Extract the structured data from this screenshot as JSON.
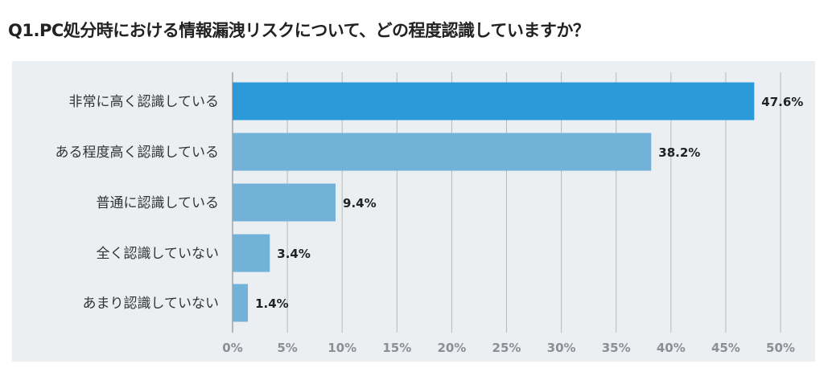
{
  "chart_data": {
    "type": "bar",
    "orientation": "horizontal",
    "title": "Q1.PC処分時における情報漏洩リスクについて、どの程度認識していますか？",
    "categories": [
      "非常に高く認識している",
      "ある程度高く認識している",
      "普通に認識している",
      "全く認識していない",
      "あまり認識していない"
    ],
    "values": [
      47.6,
      38.2,
      9.4,
      3.4,
      1.4
    ],
    "value_labels": [
      "47.6%",
      "38.2%",
      "9.4%",
      "3.4%",
      "1.4%"
    ],
    "bar_colors": [
      "#2c9ad8",
      "#72b2d8",
      "#72b2d8",
      "#72b2d8",
      "#72b2d8"
    ],
    "xlim": [
      0,
      50
    ],
    "xticks": [
      0,
      5,
      10,
      15,
      20,
      25,
      30,
      35,
      40,
      45,
      50
    ],
    "xtick_labels": [
      "0%",
      "5%",
      "10%",
      "15%",
      "20%",
      "25%",
      "30%",
      "35%",
      "40%",
      "45%",
      "50%"
    ],
    "grid": "vertical",
    "legend": "none"
  }
}
